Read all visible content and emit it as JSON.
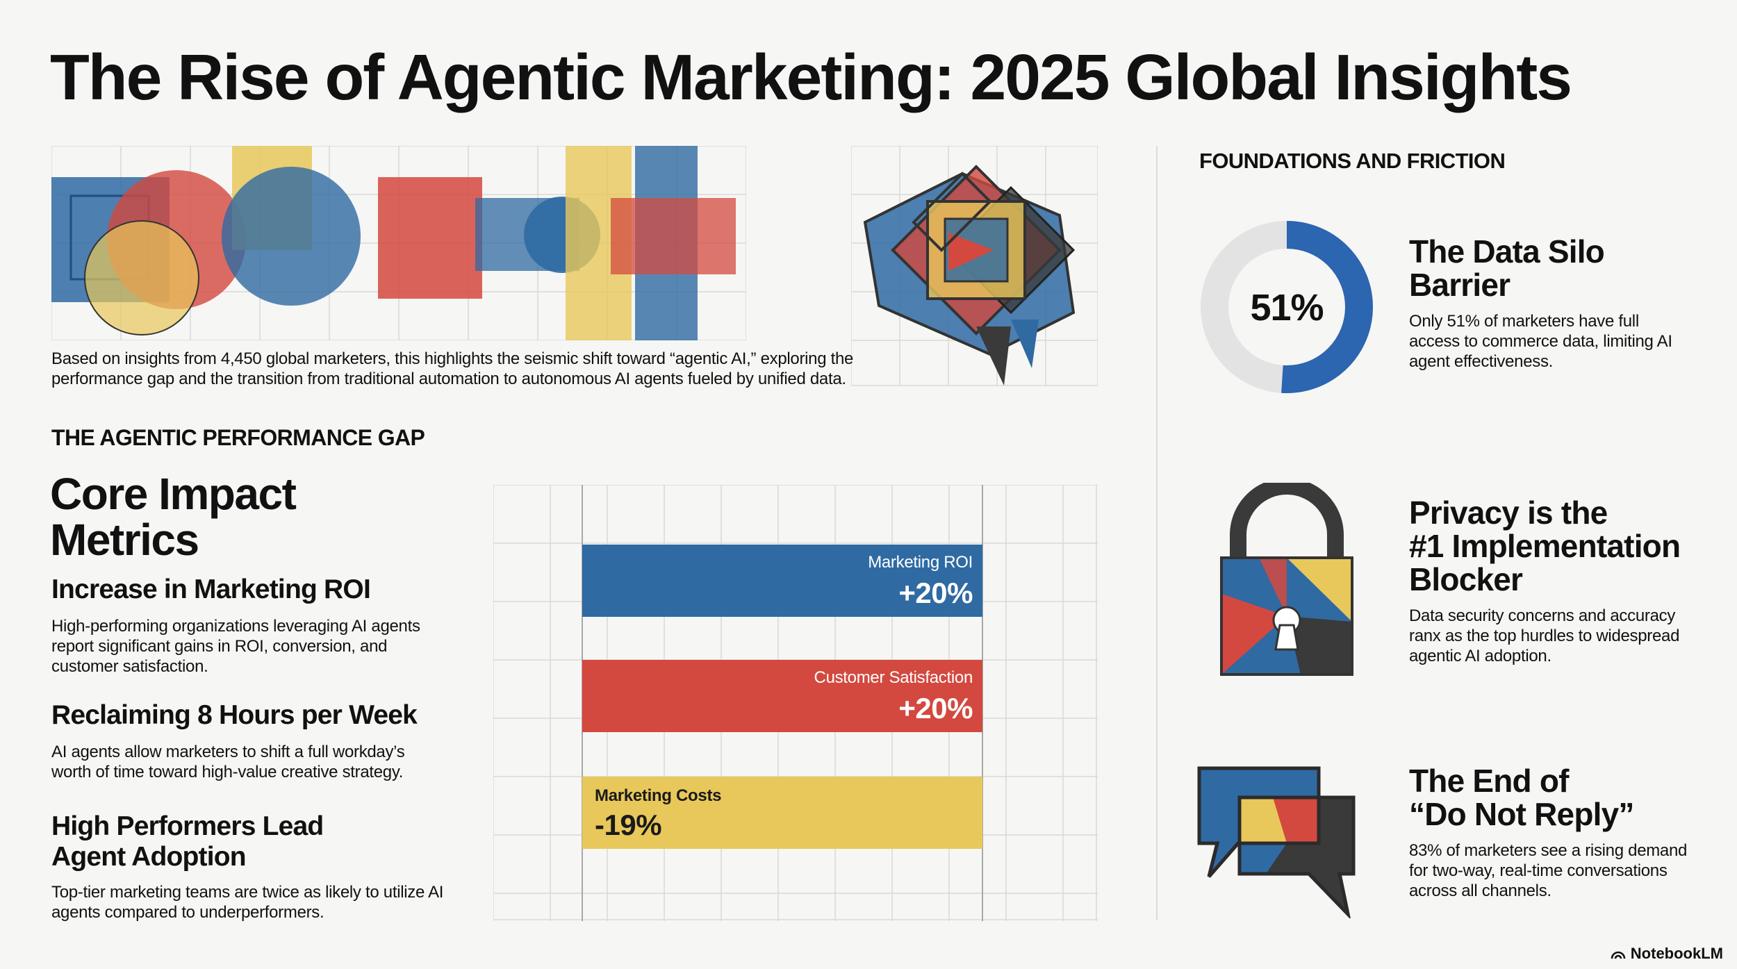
{
  "title": "The Rise of Agentic Marketing: 2025 Global Insights",
  "intro": "Based on insights from 4,450 global marketers, this highlights the seismic shift toward “agentic AI,” exploring the performance gap and the transition from traditional automation to autonomous AI agents fueled by unified data.",
  "gap_section": {
    "label": "THE AGENTIC PERFORMANCE GAP",
    "title_line1": "Core Impact",
    "title_line2": "Metrics",
    "metrics": [
      {
        "heading": "Increase in Marketing ROI",
        "desc": "High-performing organizations leveraging AI agents report significant gains in ROI, conversion, and customer satisfaction."
      },
      {
        "heading": "Reclaiming 8 Hours per Week",
        "desc": "AI agents allow marketers to shift a full workday’s worth of time toward high-value creative strategy."
      },
      {
        "heading": "High Performers Lead Agent Adoption",
        "desc": "Top-tier marketing teams are twice as likely to utilize AI agents compared to underperformers."
      }
    ]
  },
  "chart_data": {
    "type": "bar",
    "orientation": "horizontal",
    "categories": [
      "Marketing ROI",
      "Customer Satisfaction",
      "Marketing Costs"
    ],
    "values": [
      20,
      20,
      -19
    ],
    "value_labels": [
      "+20%",
      "+20%",
      "-19%"
    ],
    "colors": [
      "#2f6aa3",
      "#d3493f",
      "#e8c85a"
    ]
  },
  "foundations": {
    "label": "FOUNDATIONS AND FRICTION",
    "cards": [
      {
        "heading_line1": "The Data Silo",
        "heading_line2": "Barrier",
        "heading_line3": "",
        "desc": "Only 51% of marketers have full access to commerce data, limiting AI agent effectiveness.",
        "stat": "51%",
        "stat_value": 51
      },
      {
        "heading_line1": "Privacy is the",
        "heading_line2": "#1 Implementation",
        "heading_line3": "Blocker",
        "desc": "Data security concerns and accuracy ranx as the top hurdles to widespread agentic AI adoption."
      },
      {
        "heading_line1": "The End of",
        "heading_line2": "“Do Not Reply”",
        "heading_line3": "",
        "desc": "83% of marketers see a rising demand for two-way, real-time conversations across all channels."
      }
    ]
  },
  "brand": "NotebookLM",
  "colors": {
    "blue": "#2f6aa3",
    "red": "#d3493f",
    "yellow": "#e8c85a",
    "dark": "#3a3a3a",
    "grey": "#e3e3e3"
  }
}
